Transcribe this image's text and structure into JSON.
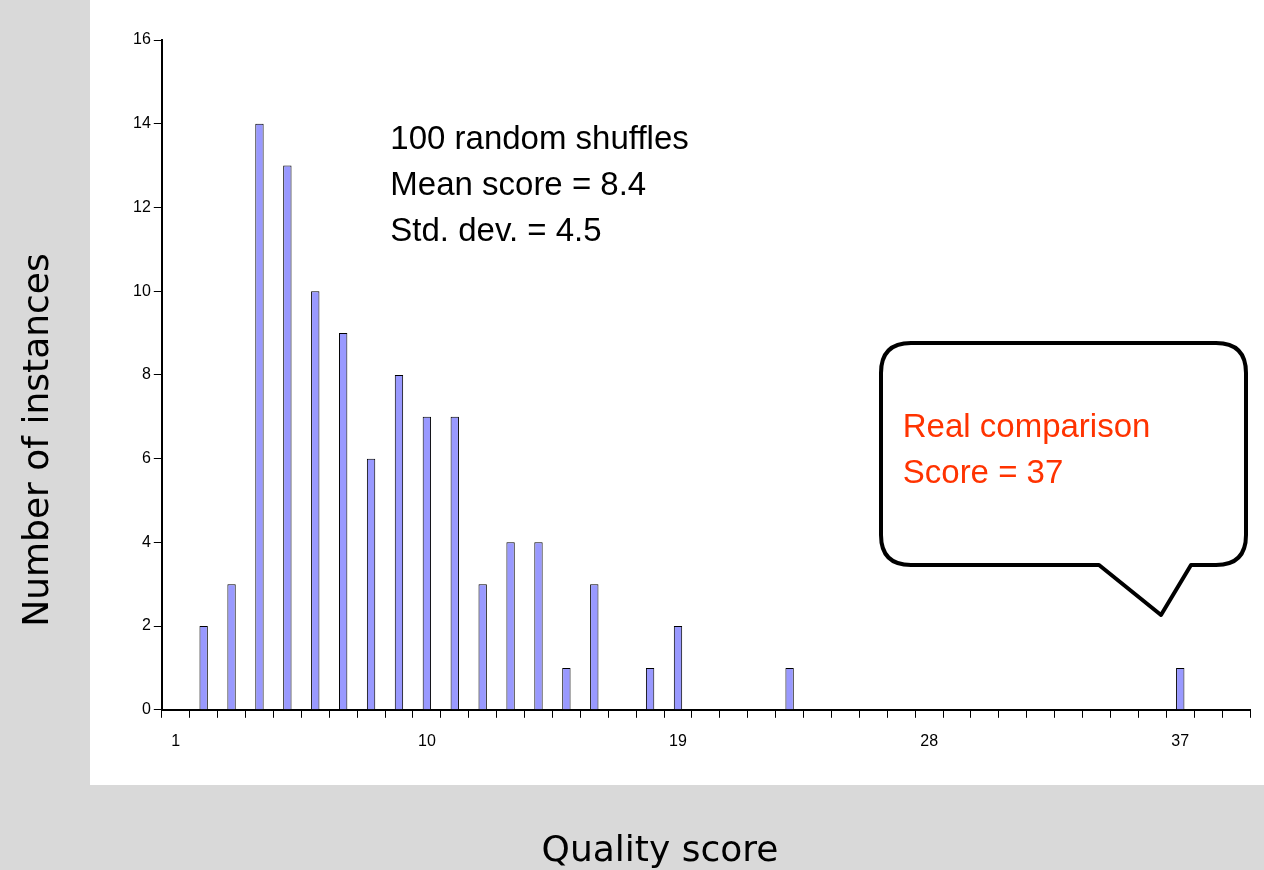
{
  "chart_data": {
    "type": "bar",
    "xlabel": "Quality score",
    "ylabel": "Number of instances",
    "categories": [
      "1",
      null,
      null,
      null,
      null,
      null,
      null,
      null,
      null,
      "10",
      null,
      null,
      null,
      null,
      null,
      null,
      null,
      null,
      "19",
      null,
      null,
      null,
      null,
      null,
      null,
      null,
      null,
      "28",
      null,
      null,
      null,
      null,
      null,
      null,
      null,
      null,
      "37",
      null,
      null
    ],
    "values": [
      0,
      2,
      3,
      14,
      13,
      10,
      9,
      6,
      8,
      7,
      7,
      3,
      4,
      4,
      1,
      3,
      0,
      1,
      2,
      0,
      0,
      0,
      1,
      0,
      0,
      0,
      0,
      0,
      0,
      0,
      0,
      0,
      0,
      0,
      0,
      0,
      1,
      0,
      0
    ],
    "color": "#9999ff",
    "ylim": [
      0,
      16
    ],
    "yticks": [
      0,
      2,
      4,
      6,
      8,
      10,
      12,
      14,
      16
    ],
    "grid": false,
    "legend": false,
    "annotations": [
      "100 random shuffles\nMean score = 8.4\nStd. dev. = 4.5",
      "Real comparison\nScore = 37"
    ]
  }
}
